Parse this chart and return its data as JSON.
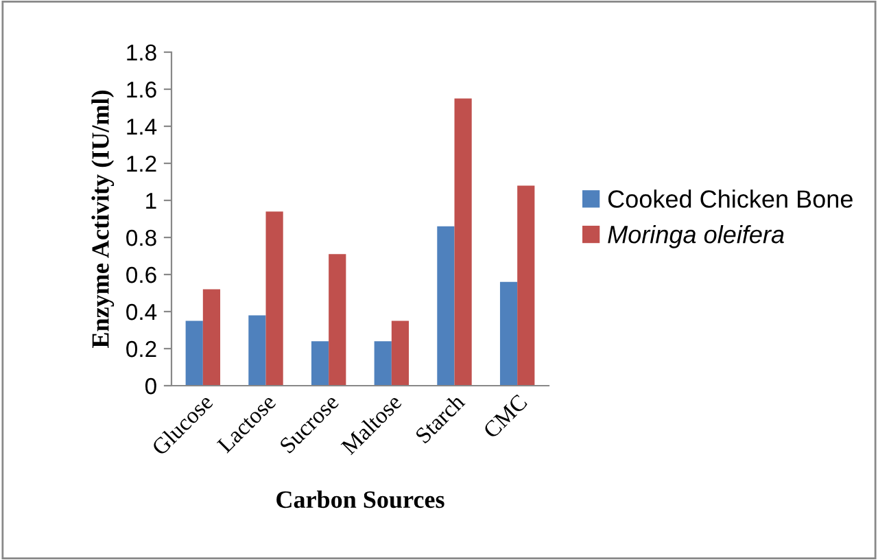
{
  "chart_data": {
    "type": "bar",
    "xlabel": "Carbon Sources",
    "ylabel": "Enzyme Activity (IU/ml)",
    "categories": [
      "Glucose",
      "Lactose",
      "Sucrose",
      "Maltose",
      "Starch",
      "CMC"
    ],
    "series": [
      {
        "name": "Cooked Chicken Bone",
        "color": "#4f81bd",
        "values": [
          0.35,
          0.38,
          0.24,
          0.24,
          0.86,
          0.56
        ]
      },
      {
        "name": "Moringa oleifera",
        "color": "#c0504d",
        "values": [
          0.52,
          0.94,
          0.71,
          0.35,
          1.55,
          1.08
        ]
      }
    ],
    "ylim": [
      0,
      1.8
    ],
    "yticks": [
      0,
      0.2,
      0.4,
      0.6,
      0.8,
      1,
      1.2,
      1.4,
      1.6,
      1.8
    ],
    "legend": "right",
    "grid": false
  }
}
